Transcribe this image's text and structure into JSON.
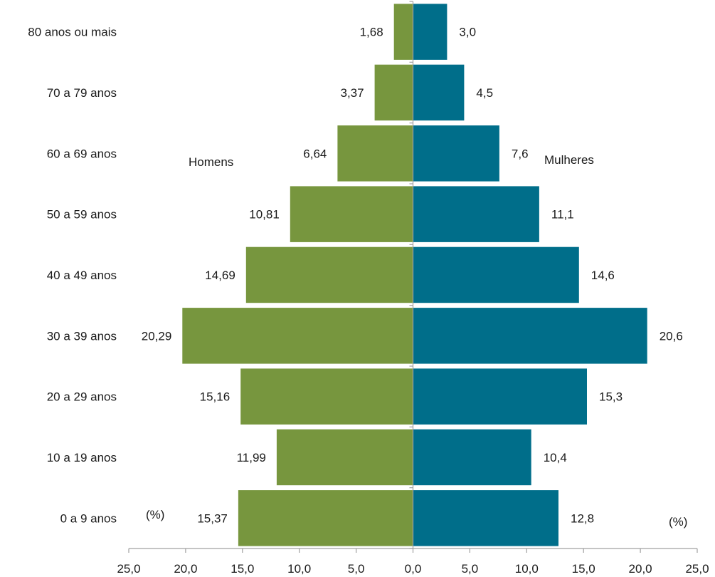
{
  "chart_data": {
    "type": "bar",
    "orientation": "horizontal-population-pyramid",
    "categories": [
      "0 a 9 anos",
      "10 a 19 anos",
      "20 a 29 anos",
      "30 a 39 anos",
      "40 a 49 anos",
      "50 a 59 anos",
      "60 a 69 anos",
      "70 a 79 anos",
      "80 anos ou mais"
    ],
    "series": [
      {
        "name": "Homens",
        "side": "left",
        "color": "#77963e",
        "values": [
          15.37,
          11.99,
          15.16,
          20.29,
          14.69,
          10.81,
          6.64,
          3.37,
          1.68
        ],
        "labels": [
          "15,37",
          "11,99",
          "15,16",
          "20,29",
          "14,69",
          "10,81",
          "6,64",
          "3,37",
          "1,68"
        ]
      },
      {
        "name": "Mulheres",
        "side": "right",
        "color": "#006e8a",
        "values": [
          12.8,
          10.4,
          15.3,
          20.6,
          14.6,
          11.1,
          7.6,
          4.5,
          3.0
        ],
        "labels": [
          "12,8",
          "10,4",
          "15,3",
          "20,6",
          "14,6",
          "11,1",
          "7,6",
          "4,5",
          "3,0"
        ]
      }
    ],
    "xlim": [
      -25,
      25
    ],
    "x_ticks": [
      -25,
      -20,
      -15,
      -10,
      -5,
      0,
      5,
      10,
      15,
      20,
      25
    ],
    "x_tick_labels": [
      "25,0",
      "20,0",
      "15,0",
      "10,0",
      "5,0",
      "0,0",
      "5,0",
      "10,0",
      "15,0",
      "20,0",
      "25,0"
    ],
    "unit_label_left": "(%)",
    "unit_label_right": "(%)",
    "grid": false,
    "axis_color": "#a0a0a0"
  }
}
